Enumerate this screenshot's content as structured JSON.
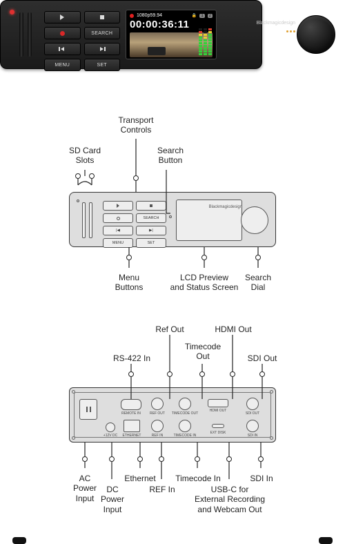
{
  "brand": "Blackmagicdesign",
  "photo": {
    "resolution": "1080p59.94",
    "timecode": "00:00:36:11",
    "card1": "1",
    "card2": "2",
    "buttons": {
      "search": "SEARCH",
      "menu": "MENU",
      "set": "SET"
    },
    "meter_levels": [
      [
        "g",
        "g",
        "g",
        "g",
        "g",
        "g",
        "g",
        "y",
        "r",
        "off"
      ],
      [
        "g",
        "g",
        "g",
        "g",
        "g",
        "g",
        "y",
        "y",
        "off",
        "off"
      ],
      [
        "g",
        "g",
        "g",
        "g",
        "g",
        "g",
        "g",
        "g",
        "y",
        "r"
      ]
    ]
  },
  "schem_buttons": {
    "search": "SEARCH",
    "menu": "MENU",
    "set": "SET"
  },
  "rear_labels": {
    "remote": "REMOTE IN",
    "dc": "+12V DC",
    "eth": "ETHERNET",
    "refout": "REF OUT",
    "refin": "REF IN",
    "tcout": "TIMECODE OUT",
    "tcin": "TIMECODE IN",
    "hdmi": "HDMI OUT",
    "ext": "EXT DISK",
    "sdiout": "SDI OUT",
    "sdiin": "SDI IN"
  },
  "callouts": {
    "sd": "SD Card\nSlots",
    "transport": "Transport\nControls",
    "searchbtn": "Search\nButton",
    "menubtn": "Menu\nButtons",
    "lcd": "LCD Preview\nand Status Screen",
    "dial": "Search\nDial",
    "rs422": "RS-422 In",
    "refout": "Ref Out",
    "tcout": "Timecode\nOut",
    "hdmi": "HDMI Out",
    "sdiout": "SDI Out",
    "ac": "AC\nPower\nInput",
    "dc": "DC\nPower\nInput",
    "eth": "Ethernet",
    "refin": "REF In",
    "tcin": "Timecode In",
    "usbc": "USB-C for\nExternal Recording\nand Webcam Out",
    "sdiin": "SDI In"
  },
  "colors": {
    "bg": "#ffffff",
    "line": "#222222",
    "schem_fill": "#dedede",
    "schem_border": "#333333",
    "green": "#33d23a",
    "yellow": "#e8d032",
    "red": "#e04030",
    "red_led": "#e03030",
    "amber": "#e0a030"
  }
}
